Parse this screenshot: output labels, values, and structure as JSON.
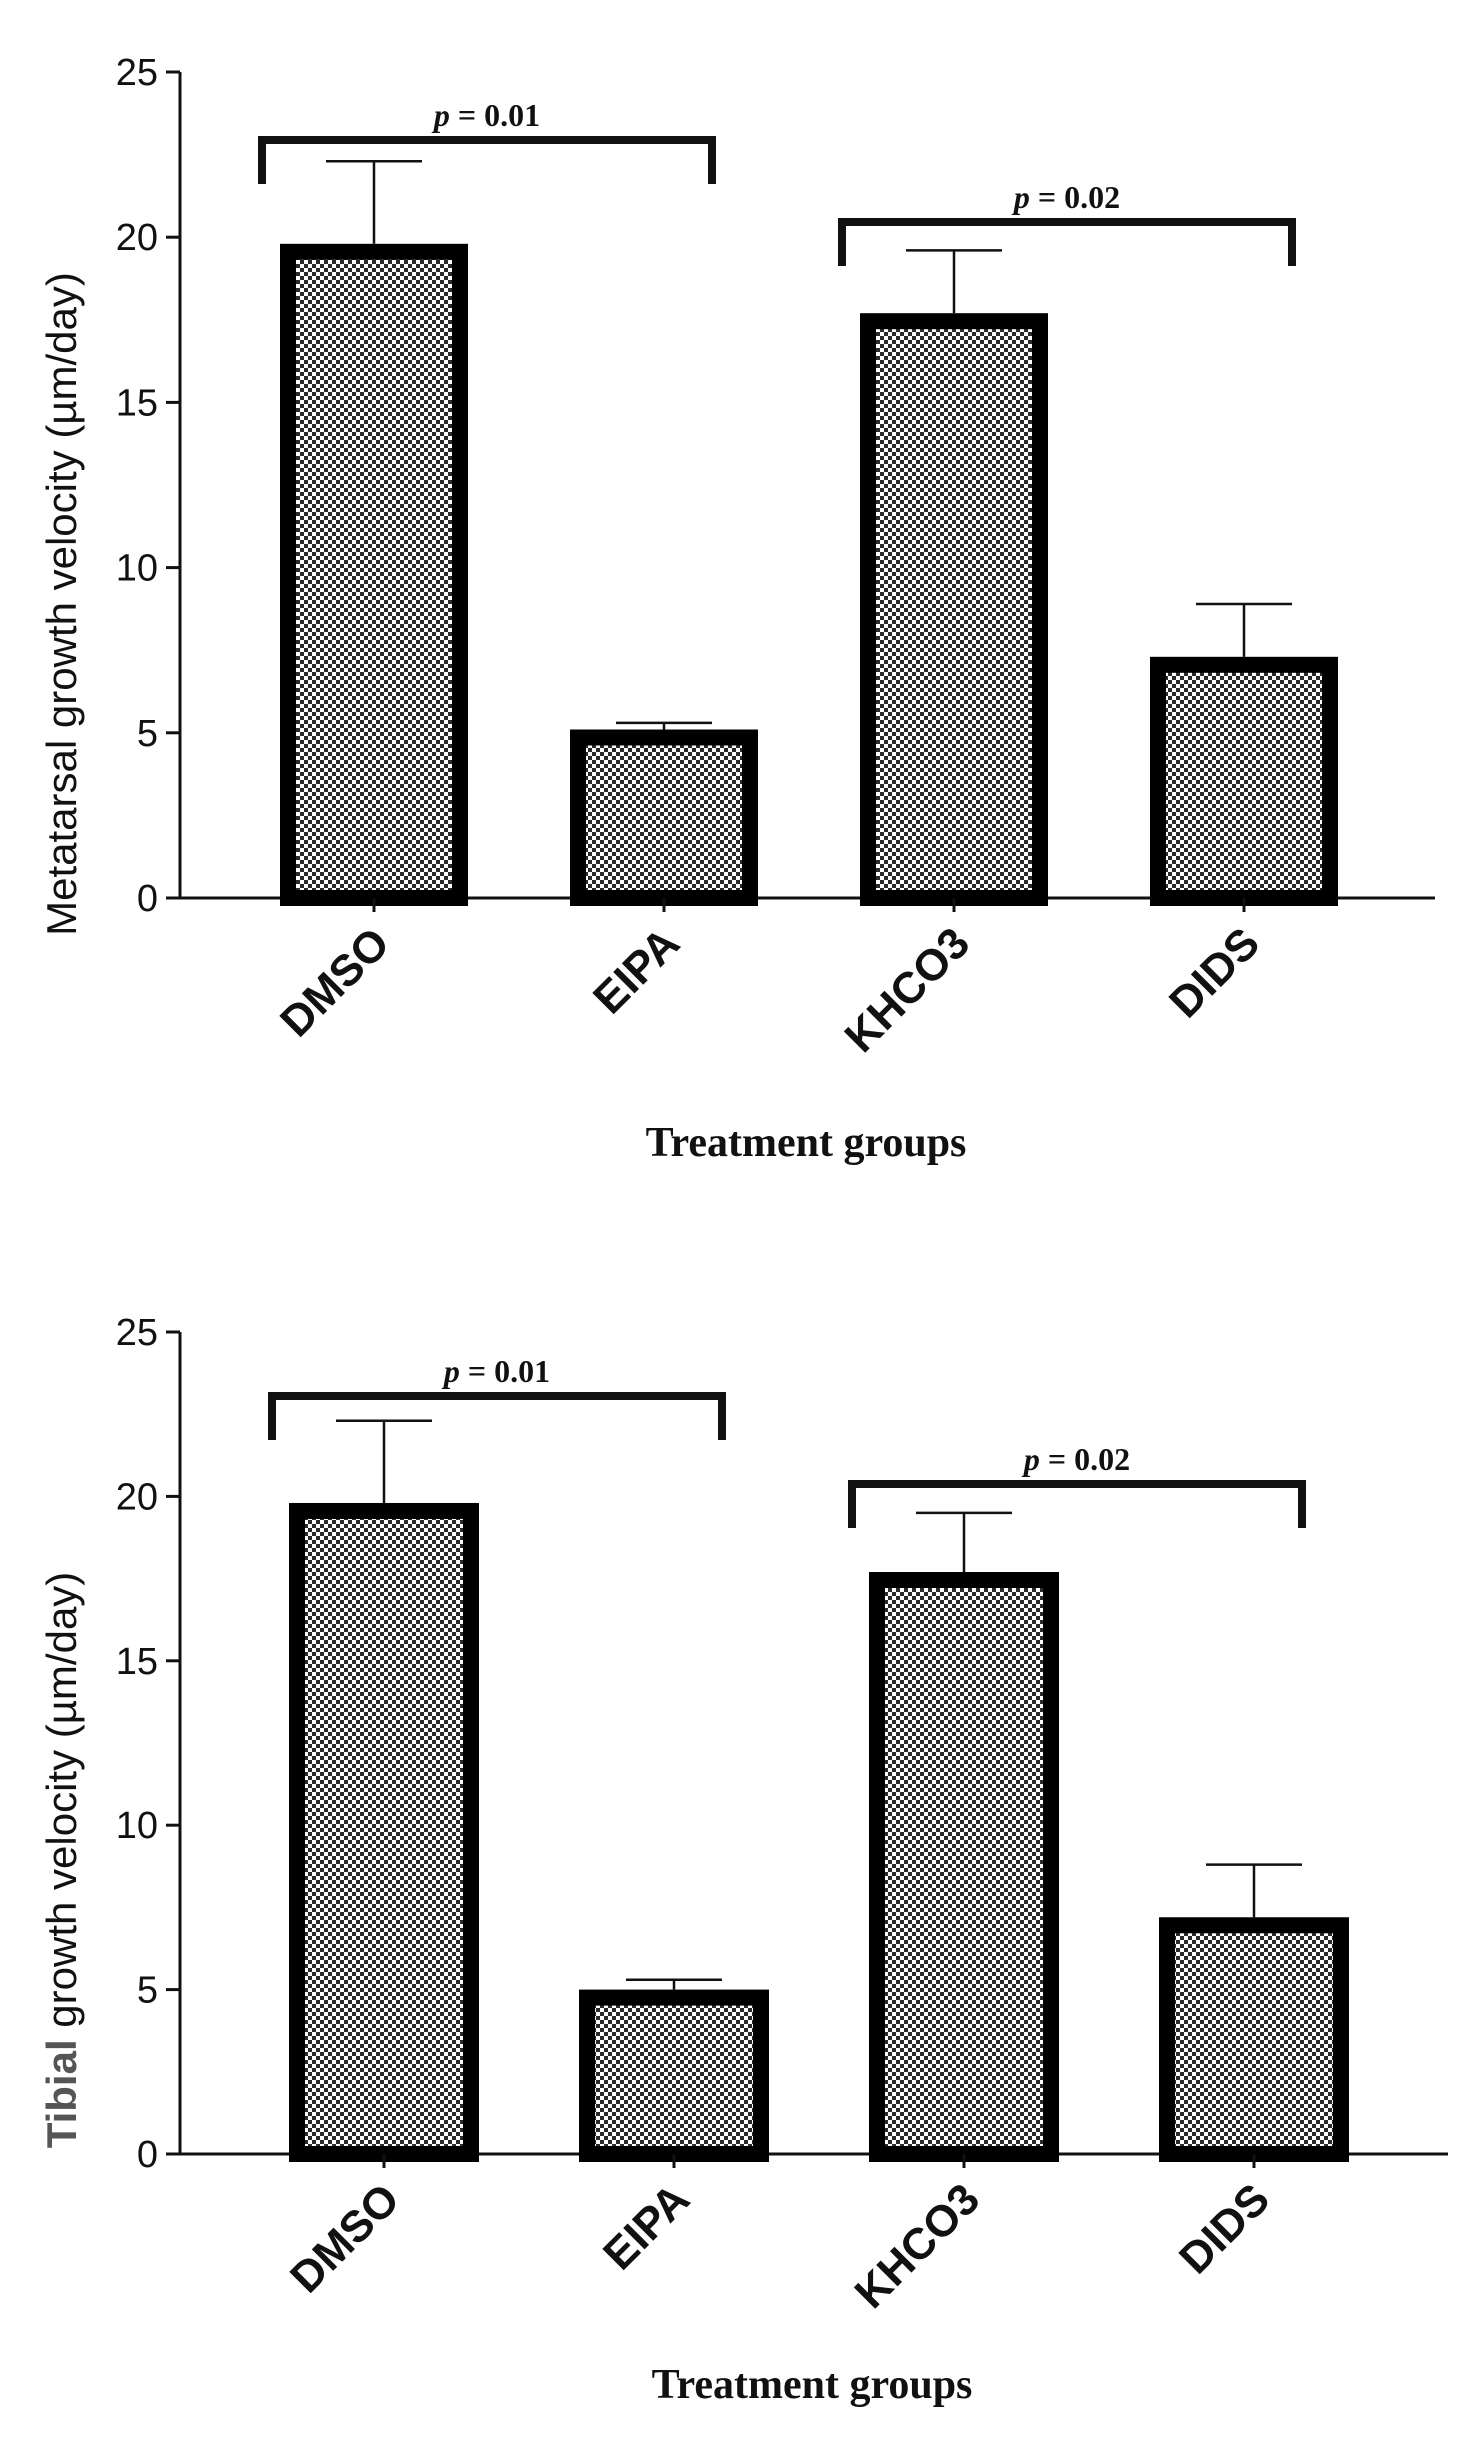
{
  "chart_data": [
    {
      "type": "bar",
      "ylabel": "Metatarsal growth velocity (µm/day)",
      "xlabel": "Treatment groups",
      "categories": [
        "DMSO",
        "EIPA",
        "KHCO3",
        "DIDS"
      ],
      "values": [
        19.8,
        5.1,
        17.7,
        7.3
      ],
      "errors": [
        2.5,
        0.2,
        1.9,
        1.6
      ],
      "ylim": [
        0,
        25
      ],
      "yticks": [
        "0",
        "5",
        "10",
        "15",
        "20",
        "25"
      ],
      "comparisons": [
        {
          "from": 0,
          "to": 1,
          "p_symbol": "p",
          "p_rest": " = 0.01"
        },
        {
          "from": 2,
          "to": 3,
          "p_symbol": "p",
          "p_rest": " = 0.02"
        }
      ],
      "fill": "checkered",
      "bar_color": "#000000"
    },
    {
      "type": "bar",
      "ylabel_emph": "Tibial",
      "ylabel_rest": " growth velocity (µm/day)",
      "xlabel": "Treatment groups",
      "categories": [
        "DMSO",
        "EIPA",
        "KHCO3",
        "DIDS"
      ],
      "values": [
        19.8,
        5.0,
        17.7,
        7.2
      ],
      "errors": [
        2.5,
        0.3,
        1.8,
        1.6
      ],
      "ylim": [
        0,
        25
      ],
      "yticks": [
        "0",
        "5",
        "10",
        "15",
        "20",
        "25"
      ],
      "comparisons": [
        {
          "from": 0,
          "to": 1,
          "p_symbol": "p",
          "p_rest": " = 0.01"
        },
        {
          "from": 2,
          "to": 3,
          "p_symbol": "p",
          "p_rest": " = 0.02"
        }
      ],
      "fill": "checkered",
      "bar_color": "#000000"
    }
  ]
}
